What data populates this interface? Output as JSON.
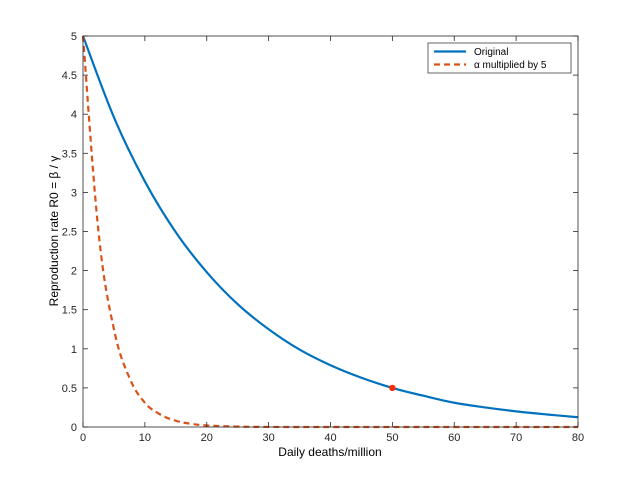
{
  "chart_data": {
    "type": "line",
    "xlabel": "Daily deaths/million",
    "ylabel": "Reproduction rate R0 = β / γ",
    "xlim": [
      0,
      80
    ],
    "ylim": [
      0,
      5
    ],
    "xticks": [
      0,
      10,
      20,
      30,
      40,
      50,
      60,
      70,
      80
    ],
    "yticks": [
      0,
      0.5,
      1,
      1.5,
      2,
      2.5,
      3,
      3.5,
      4,
      4.5,
      5
    ],
    "grid": false,
    "box": true,
    "legend_position": "top-right",
    "series": [
      {
        "name": "Original",
        "style": "solid",
        "color": "#0072BD",
        "x": [
          0,
          5,
          10,
          15,
          20,
          25,
          30,
          35,
          40,
          45,
          50,
          55,
          60,
          65,
          70,
          75,
          80
        ],
        "y": [
          5.0,
          3.96,
          3.14,
          2.49,
          1.98,
          1.57,
          1.25,
          0.99,
          0.79,
          0.63,
          0.5,
          0.4,
          0.31,
          0.25,
          0.2,
          0.16,
          0.125
        ]
      },
      {
        "name": "α multiplied by 5",
        "style": "dashed",
        "color": "#D95319",
        "x": [
          0,
          2.5,
          5,
          7.5,
          10,
          12.5,
          15,
          17.5,
          20,
          25,
          30,
          40,
          50,
          60,
          70,
          80
        ],
        "y": [
          5.0,
          2.5,
          1.25,
          0.63,
          0.31,
          0.16,
          0.08,
          0.04,
          0.02,
          0.005,
          0.001,
          0,
          0,
          0,
          0,
          0
        ]
      }
    ],
    "markers": [
      {
        "x": 50,
        "y": 0.5,
        "color": "#FF2A00"
      }
    ]
  }
}
